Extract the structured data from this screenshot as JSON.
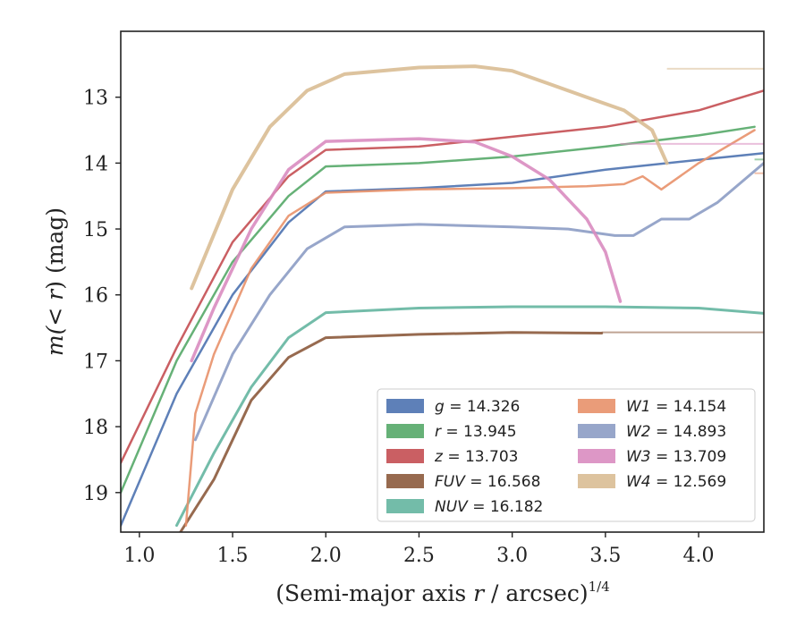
{
  "chart_data": {
    "type": "line",
    "xlabel_main": "(Semi-major axis ",
    "xlabel_var": "r",
    "xlabel_tail": " / arcsec)",
    "xlabel_exp": "1/4",
    "ylabel_pre": "m(< ",
    "ylabel_var": "r",
    "ylabel_post": ") (mag)",
    "xlim": [
      0.9,
      4.35
    ],
    "ylim": [
      19.6,
      12.0
    ],
    "y_inverted": true,
    "xticks": [
      1.0,
      1.5,
      2.0,
      2.5,
      3.0,
      3.5,
      4.0
    ],
    "xtick_labels": [
      "1.0",
      "1.5",
      "2.0",
      "2.5",
      "3.0",
      "3.5",
      "4.0"
    ],
    "yticks": [
      13,
      14,
      15,
      16,
      17,
      18,
      19
    ],
    "ytick_labels": [
      "13",
      "14",
      "15",
      "16",
      "17",
      "18",
      "19"
    ],
    "legend_position": "lower-right",
    "series": [
      {
        "name": "g",
        "label_value": "= 14.326",
        "color": "#4c72b0",
        "asymptote": 14.326,
        "width": 2.5,
        "x": [
          0.9,
          1.2,
          1.5,
          1.8,
          2.0,
          2.5,
          3.0,
          3.5,
          4.0,
          4.35
        ],
        "y": [
          19.5,
          17.5,
          16.0,
          14.9,
          14.43,
          14.38,
          14.3,
          14.1,
          13.95,
          13.85
        ]
      },
      {
        "name": "r",
        "label_value": "= 13.945",
        "color": "#55a868",
        "asymptote": 13.945,
        "width": 2.5,
        "x": [
          0.9,
          1.2,
          1.5,
          1.8,
          2.0,
          2.5,
          3.0,
          3.5,
          4.0,
          4.3
        ],
        "y": [
          19.0,
          17.0,
          15.5,
          14.5,
          14.05,
          14.0,
          13.9,
          13.75,
          13.58,
          13.45
        ]
      },
      {
        "name": "z",
        "label_value": "= 13.703",
        "color": "#c44e52",
        "asymptote": 13.703,
        "width": 2.5,
        "x": [
          0.9,
          1.2,
          1.5,
          1.8,
          2.0,
          2.5,
          3.0,
          3.5,
          4.0,
          4.35
        ],
        "y": [
          18.55,
          16.8,
          15.2,
          14.2,
          13.8,
          13.75,
          13.6,
          13.45,
          13.2,
          12.9
        ]
      },
      {
        "name": "FUV",
        "label_value": "= 16.568",
        "color": "#8c5a3c",
        "asymptote": 16.568,
        "width": 3,
        "x": [
          1.22,
          1.4,
          1.6,
          1.8,
          2.0,
          2.5,
          3.0,
          3.48
        ],
        "y": [
          19.6,
          18.8,
          17.6,
          16.95,
          16.65,
          16.6,
          16.57,
          16.58
        ]
      },
      {
        "name": "NUV",
        "label_value": "= 16.182",
        "color": "#64b5a0",
        "asymptote": 16.182,
        "width": 3,
        "x": [
          1.2,
          1.4,
          1.6,
          1.8,
          2.0,
          2.5,
          3.0,
          3.5,
          4.0,
          4.35
        ],
        "y": [
          19.5,
          18.4,
          17.4,
          16.65,
          16.27,
          16.2,
          16.18,
          16.18,
          16.2,
          16.28
        ]
      },
      {
        "name": "W1",
        "label_value": "= 14.154",
        "color": "#e8916a",
        "asymptote": 14.154,
        "width": 2.5,
        "x": [
          1.25,
          1.3,
          1.4,
          1.6,
          1.8,
          2.0,
          2.5,
          3.0,
          3.4,
          3.6,
          3.7,
          3.8,
          4.0,
          4.3
        ],
        "y": [
          19.5,
          17.8,
          16.9,
          15.6,
          14.8,
          14.45,
          14.4,
          14.38,
          14.35,
          14.32,
          14.2,
          14.4,
          14.0,
          13.5
        ]
      },
      {
        "name": "W2",
        "label_value": "= 14.893",
        "color": "#8c9cc4",
        "asymptote": 14.893,
        "width": 3,
        "x": [
          1.3,
          1.5,
          1.7,
          1.9,
          2.1,
          2.5,
          3.0,
          3.3,
          3.55,
          3.65,
          3.8,
          3.95,
          4.1,
          4.35
        ],
        "y": [
          18.2,
          16.9,
          16.0,
          15.3,
          14.97,
          14.93,
          14.97,
          15.0,
          15.1,
          15.1,
          14.85,
          14.85,
          14.6,
          14.0
        ]
      },
      {
        "name": "W3",
        "label_value": "= 13.709",
        "color": "#d98cc0",
        "asymptote": 13.709,
        "width": 3.5,
        "x": [
          1.28,
          1.4,
          1.6,
          1.8,
          2.0,
          2.5,
          2.8,
          3.0,
          3.2,
          3.4,
          3.5,
          3.58
        ],
        "y": [
          17.0,
          16.2,
          15.0,
          14.1,
          13.67,
          13.63,
          13.68,
          13.9,
          14.25,
          14.85,
          15.35,
          16.1
        ]
      },
      {
        "name": "W4",
        "label_value": "= 12.569",
        "color": "#d9bc94",
        "asymptote": 12.569,
        "width": 4,
        "x": [
          1.28,
          1.5,
          1.7,
          1.9,
          2.1,
          2.5,
          2.8,
          3.0,
          3.2,
          3.4,
          3.6,
          3.75,
          3.83
        ],
        "y": [
          15.9,
          14.4,
          13.45,
          12.9,
          12.65,
          12.55,
          12.53,
          12.6,
          12.8,
          13.0,
          13.2,
          13.5,
          14.0
        ]
      }
    ]
  }
}
